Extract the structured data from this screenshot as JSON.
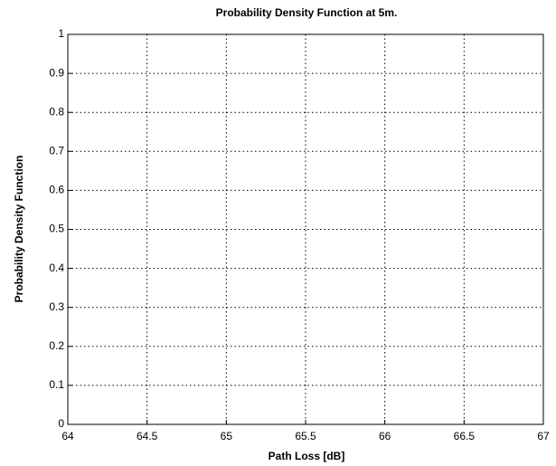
{
  "chart_data": {
    "type": "line",
    "title": "Probability Density Function at 5m.",
    "xlabel": "Path Loss [dB]",
    "ylabel": "Probability Density Function",
    "xlim": [
      64,
      67
    ],
    "xticks": [
      64,
      64.5,
      65,
      65.5,
      66,
      66.5,
      67
    ],
    "ylim": [
      0,
      1
    ],
    "yticks": [
      0,
      0.1,
      0.2,
      0.3,
      0.4,
      0.5,
      0.6,
      0.7,
      0.8,
      0.9,
      1
    ],
    "grid": true
  }
}
